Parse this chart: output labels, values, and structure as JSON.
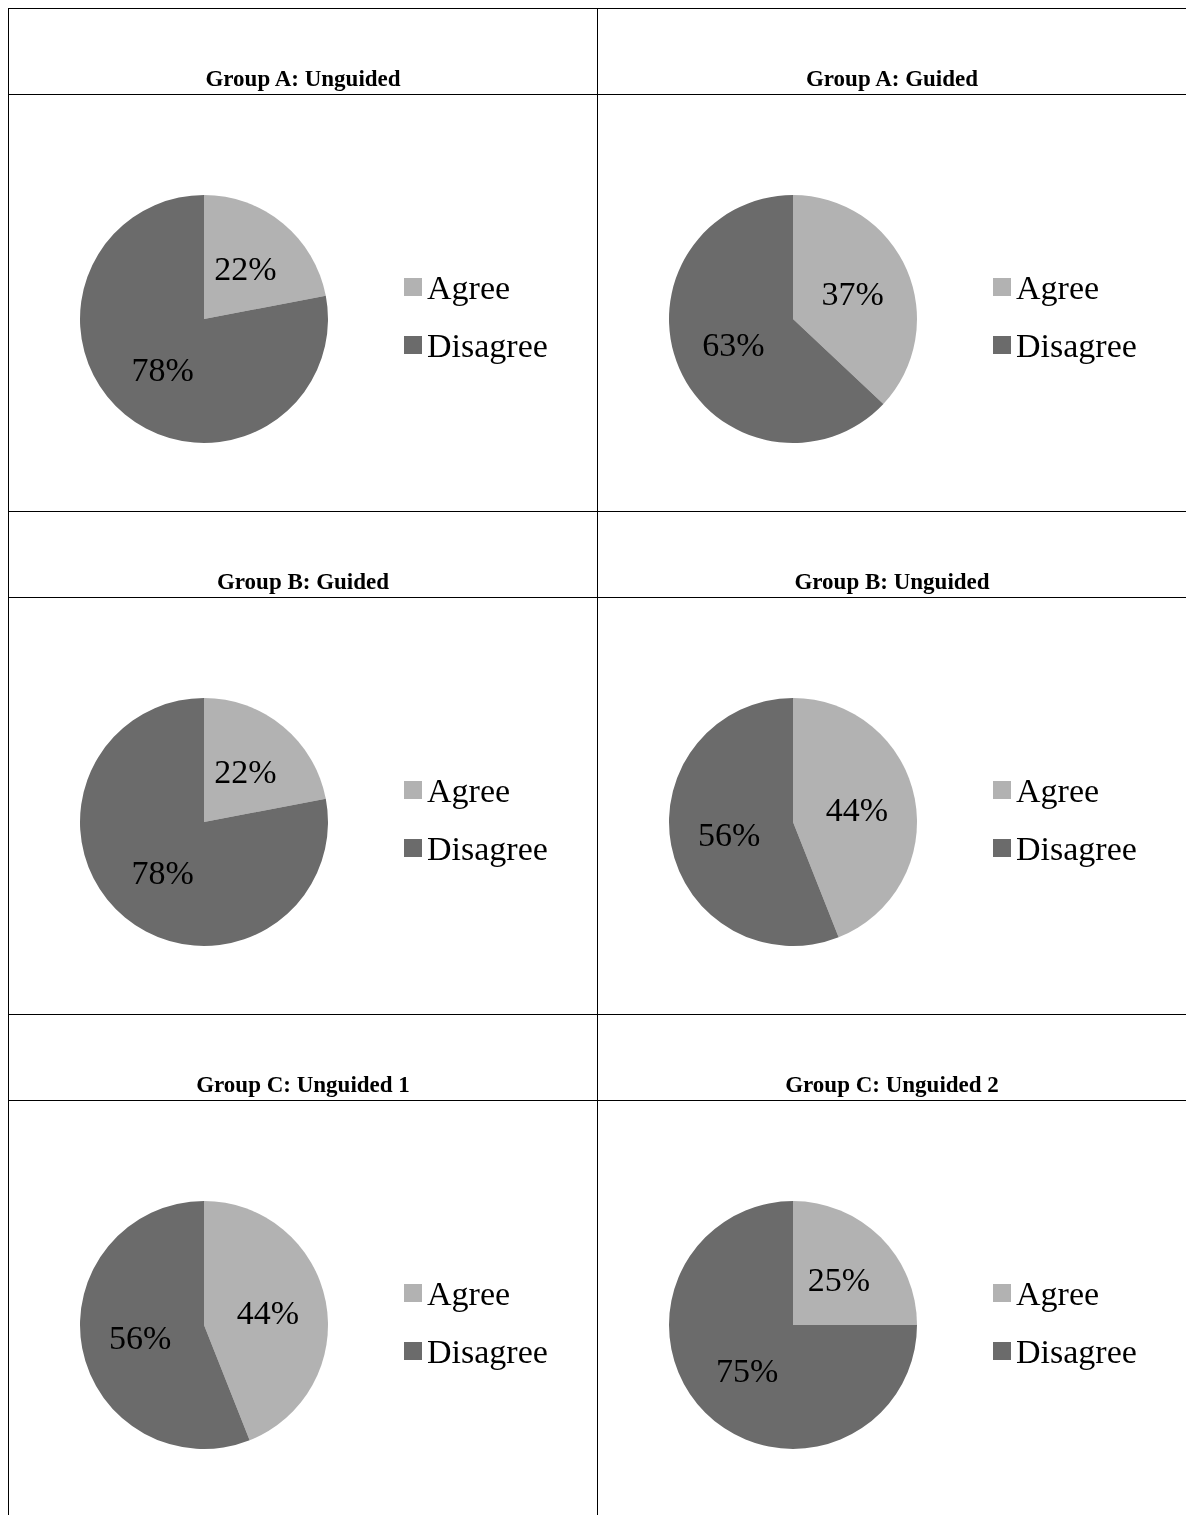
{
  "chart_data": [
    {
      "type": "pie",
      "title": "Group A: Unguided",
      "categories": [
        "Agree",
        "Disagree"
      ],
      "values": [
        22,
        78
      ],
      "colors": [
        "#b2b2b2",
        "#6b6b6b"
      ],
      "value_labels": [
        "22%",
        "78%"
      ],
      "legend": "right"
    },
    {
      "type": "pie",
      "title": "Group A: Guided",
      "categories": [
        "Agree",
        "Disagree"
      ],
      "values": [
        37,
        63
      ],
      "colors": [
        "#b2b2b2",
        "#6b6b6b"
      ],
      "value_labels": [
        "37%",
        "63%"
      ],
      "legend": "right"
    },
    {
      "type": "pie",
      "title": "Group B: Guided",
      "categories": [
        "Agree",
        "Disagree"
      ],
      "values": [
        22,
        78
      ],
      "colors": [
        "#b2b2b2",
        "#6b6b6b"
      ],
      "value_labels": [
        "22%",
        "78%"
      ],
      "legend": "right"
    },
    {
      "type": "pie",
      "title": "Group B: Unguided",
      "categories": [
        "Agree",
        "Disagree"
      ],
      "values": [
        44,
        56
      ],
      "colors": [
        "#b2b2b2",
        "#6b6b6b"
      ],
      "value_labels": [
        "44%",
        "56%"
      ],
      "legend": "right"
    },
    {
      "type": "pie",
      "title": "Group C: Unguided 1",
      "categories": [
        "Agree",
        "Disagree"
      ],
      "values": [
        44,
        56
      ],
      "colors": [
        "#b2b2b2",
        "#6b6b6b"
      ],
      "value_labels": [
        "44%",
        "56%"
      ],
      "legend": "right"
    },
    {
      "type": "pie",
      "title": "Group C: Unguided 2",
      "categories": [
        "Agree",
        "Disagree"
      ],
      "values": [
        25,
        75
      ],
      "colors": [
        "#b2b2b2",
        "#6b6b6b"
      ],
      "value_labels": [
        "25%",
        "75%"
      ],
      "legend": "right"
    }
  ]
}
